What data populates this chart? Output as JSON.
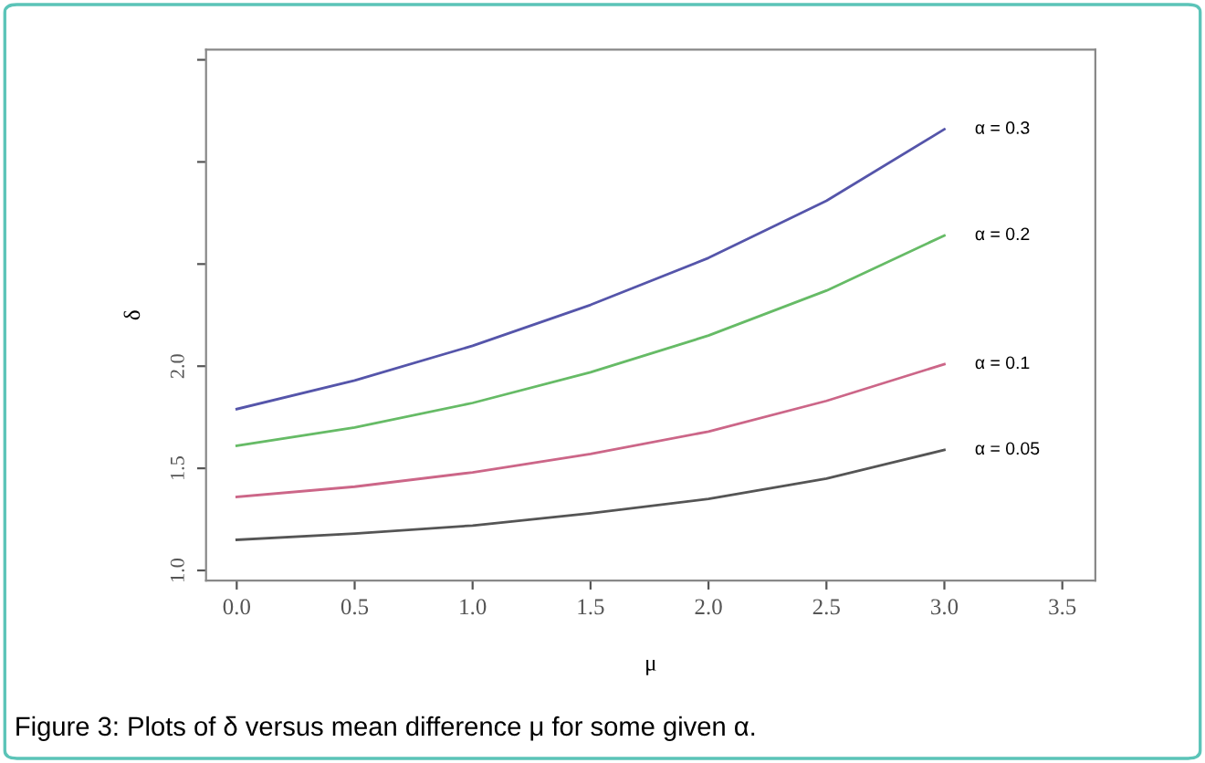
{
  "chart_data": {
    "type": "line",
    "xlabel": "μ",
    "ylabel": "δ",
    "x": [
      0,
      0.5,
      1.0,
      1.5,
      2.0,
      2.5,
      3.0
    ],
    "series": [
      {
        "name": "α = 0.3",
        "color": "#5555aa",
        "values": [
          1.79,
          1.93,
          2.1,
          2.3,
          2.53,
          2.81,
          3.16
        ]
      },
      {
        "name": "α = 0.2",
        "color": "#66bb66",
        "values": [
          1.61,
          1.7,
          1.82,
          1.97,
          2.15,
          2.37,
          2.64
        ]
      },
      {
        "name": "α = 0.1",
        "color": "#cc6688",
        "values": [
          1.36,
          1.41,
          1.48,
          1.57,
          1.68,
          1.83,
          2.01
        ]
      },
      {
        "name": "α = 0.05",
        "color": "#555555",
        "values": [
          1.15,
          1.18,
          1.22,
          1.28,
          1.35,
          1.45,
          1.59
        ]
      }
    ],
    "xlim": [
      -0.13,
      3.64
    ],
    "ylim": [
      0.95,
      3.55
    ],
    "xticks": [
      {
        "value": 0,
        "label": "0.0"
      },
      0.5,
      {
        "value": 1,
        "label": "1.0"
      },
      1.5,
      {
        "value": 2,
        "label": "2.0"
      },
      2.5,
      {
        "value": 3,
        "label": "3.0"
      },
      3.5
    ],
    "yticks": [
      {
        "value": 1,
        "label": "1.0"
      },
      1.5,
      {
        "value": 2,
        "label": "2.0"
      },
      {
        "value": 2.5,
        "label": null
      },
      {
        "value": 3,
        "label": null
      },
      {
        "value": 3.5,
        "label": null
      }
    ],
    "grid": false,
    "legend": false,
    "marker": "none",
    "line_style": "solid",
    "annotations": [
      "Figure 3: Plots of δ versus mean difference μ for some given α."
    ]
  }
}
